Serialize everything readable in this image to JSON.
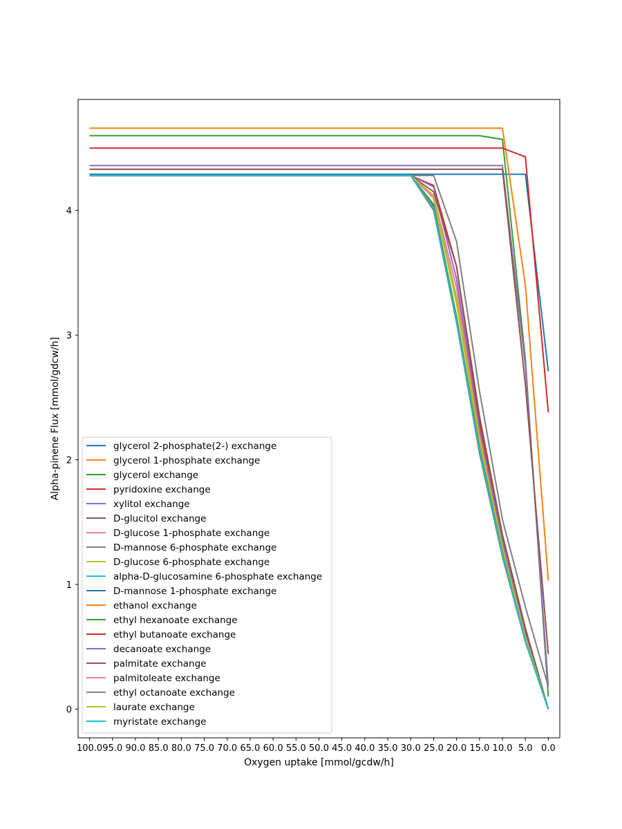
{
  "chart_data": {
    "type": "line",
    "title": "",
    "xlabel": "Oxygen uptake [mmol/gcdw/h]",
    "ylabel": "Alpha-pinene Flux [mmol/gdcw/h]",
    "x_inverted": true,
    "xlim": [
      102.5,
      -2.5
    ],
    "ylim": [
      -0.23,
      4.89
    ],
    "x": [
      100,
      95,
      90,
      85,
      80,
      75,
      70,
      65,
      60,
      55,
      50,
      45,
      40,
      35,
      30,
      25,
      20,
      15,
      10,
      5,
      0
    ],
    "x_tick_labels": [
      "100.0",
      "95.0",
      "90.0",
      "85.0",
      "80.0",
      "75.0",
      "70.0",
      "65.0",
      "60.0",
      "55.0",
      "50.0",
      "45.0",
      "40.0",
      "35.0",
      "30.0",
      "25.0",
      "20.0",
      "15.0",
      "10.0",
      "5.0",
      "0.0"
    ],
    "y_ticks": [
      0,
      1,
      2,
      3,
      4
    ],
    "y_tick_labels": [
      "0",
      "1",
      "2",
      "3",
      "4"
    ],
    "grid": false,
    "legend_position": "lower-left",
    "series": [
      {
        "name": "glycerol 2-phosphate(2-) exchange",
        "color": "#1f77b4",
        "values": [
          4.29,
          4.29,
          4.29,
          4.29,
          4.29,
          4.29,
          4.29,
          4.29,
          4.29,
          4.29,
          4.29,
          4.29,
          4.29,
          4.29,
          4.29,
          4.29,
          4.29,
          4.29,
          4.29,
          4.29,
          2.71
        ]
      },
      {
        "name": "glycerol 1-phosphate exchange",
        "color": "#ff7f0e",
        "values": [
          4.66,
          4.66,
          4.66,
          4.66,
          4.66,
          4.66,
          4.66,
          4.66,
          4.66,
          4.66,
          4.66,
          4.66,
          4.66,
          4.66,
          4.66,
          4.66,
          4.66,
          4.66,
          4.66,
          3.4,
          1.03
        ]
      },
      {
        "name": "glycerol exchange",
        "color": "#2ca02c",
        "values": [
          4.6,
          4.6,
          4.6,
          4.6,
          4.6,
          4.6,
          4.6,
          4.6,
          4.6,
          4.6,
          4.6,
          4.6,
          4.6,
          4.6,
          4.6,
          4.6,
          4.6,
          4.6,
          4.57,
          2.8,
          0.1
        ]
      },
      {
        "name": "pyridoxine exchange",
        "color": "#d62728",
        "values": [
          4.5,
          4.5,
          4.5,
          4.5,
          4.5,
          4.5,
          4.5,
          4.5,
          4.5,
          4.5,
          4.5,
          4.5,
          4.5,
          4.5,
          4.5,
          4.5,
          4.5,
          4.5,
          4.5,
          4.43,
          2.38
        ]
      },
      {
        "name": "xylitol exchange",
        "color": "#9467bd",
        "values": [
          4.36,
          4.36,
          4.36,
          4.36,
          4.36,
          4.36,
          4.36,
          4.36,
          4.36,
          4.36,
          4.36,
          4.36,
          4.36,
          4.36,
          4.36,
          4.36,
          4.36,
          4.36,
          4.36,
          2.75,
          0.18
        ]
      },
      {
        "name": "D-glucitol exchange",
        "color": "#8c564b",
        "values": [
          4.33,
          4.33,
          4.33,
          4.33,
          4.33,
          4.33,
          4.33,
          4.33,
          4.33,
          4.33,
          4.33,
          4.33,
          4.33,
          4.33,
          4.33,
          4.33,
          4.33,
          4.33,
          4.33,
          2.6,
          0.44
        ]
      },
      {
        "name": "D-glucose 1-phosphate exchange",
        "color": "#e377c2",
        "values": [
          4.28,
          4.28,
          4.28,
          4.28,
          4.28,
          4.28,
          4.28,
          4.28,
          4.28,
          4.28,
          4.28,
          4.28,
          4.28,
          4.28,
          4.28,
          4.12,
          3.38,
          2.2,
          1.32,
          0.6,
          0.0
        ]
      },
      {
        "name": "D-mannose 6-phosphate exchange",
        "color": "#7f7f7f",
        "values": [
          4.28,
          4.28,
          4.28,
          4.28,
          4.28,
          4.28,
          4.28,
          4.28,
          4.28,
          4.28,
          4.28,
          4.28,
          4.28,
          4.28,
          4.28,
          4.28,
          3.75,
          2.55,
          1.52,
          0.82,
          0.18
        ]
      },
      {
        "name": "D-glucose 6-phosphate exchange",
        "color": "#bcbd22",
        "values": [
          4.28,
          4.28,
          4.28,
          4.28,
          4.28,
          4.28,
          4.28,
          4.28,
          4.28,
          4.28,
          4.28,
          4.28,
          4.28,
          4.28,
          4.28,
          4.1,
          3.25,
          2.15,
          1.3,
          0.58,
          0.0
        ]
      },
      {
        "name": "alpha-D-glucosamine 6-phosphate exchange",
        "color": "#17becf",
        "values": [
          4.28,
          4.28,
          4.28,
          4.28,
          4.28,
          4.28,
          4.28,
          4.28,
          4.28,
          4.28,
          4.28,
          4.28,
          4.28,
          4.28,
          4.28,
          4.05,
          3.15,
          2.1,
          1.25,
          0.55,
          0.0
        ]
      },
      {
        "name": "D-mannose 1-phosphate exchange",
        "color": "#1f77b4",
        "values": [
          4.28,
          4.28,
          4.28,
          4.28,
          4.28,
          4.28,
          4.28,
          4.28,
          4.28,
          4.28,
          4.28,
          4.28,
          4.28,
          4.28,
          4.28,
          4.03,
          3.12,
          2.08,
          1.24,
          0.55,
          0.0
        ]
      },
      {
        "name": "ethanol exchange",
        "color": "#ff7f0e",
        "values": [
          4.28,
          4.28,
          4.28,
          4.28,
          4.28,
          4.28,
          4.28,
          4.28,
          4.28,
          4.28,
          4.28,
          4.28,
          4.28,
          4.28,
          4.28,
          4.05,
          3.15,
          2.1,
          1.25,
          0.56,
          0.0
        ]
      },
      {
        "name": "ethyl hexanoate exchange",
        "color": "#2ca02c",
        "values": [
          4.28,
          4.28,
          4.28,
          4.28,
          4.28,
          4.28,
          4.28,
          4.28,
          4.28,
          4.28,
          4.28,
          4.28,
          4.28,
          4.28,
          4.28,
          4.04,
          3.14,
          2.09,
          1.25,
          0.55,
          0.0
        ]
      },
      {
        "name": "ethyl butanoate exchange",
        "color": "#d62728",
        "values": [
          4.28,
          4.28,
          4.28,
          4.28,
          4.28,
          4.28,
          4.28,
          4.28,
          4.28,
          4.28,
          4.28,
          4.28,
          4.28,
          4.28,
          4.28,
          4.2,
          3.55,
          2.3,
          1.38,
          0.62,
          0.0
        ]
      },
      {
        "name": "decanoate exchange",
        "color": "#9467bd",
        "values": [
          4.28,
          4.28,
          4.28,
          4.28,
          4.28,
          4.28,
          4.28,
          4.28,
          4.28,
          4.28,
          4.28,
          4.28,
          4.28,
          4.28,
          4.28,
          4.19,
          3.45,
          2.25,
          1.35,
          0.6,
          0.0
        ]
      },
      {
        "name": "palmitate exchange",
        "color": "#8c564b",
        "values": [
          4.28,
          4.28,
          4.28,
          4.28,
          4.28,
          4.28,
          4.28,
          4.28,
          4.28,
          4.28,
          4.28,
          4.28,
          4.28,
          4.28,
          4.28,
          4.15,
          3.55,
          2.35,
          1.4,
          0.65,
          0.0
        ]
      },
      {
        "name": "palmitoleate exchange",
        "color": "#e377c2",
        "values": [
          4.28,
          4.28,
          4.28,
          4.28,
          4.28,
          4.28,
          4.28,
          4.28,
          4.28,
          4.28,
          4.28,
          4.28,
          4.28,
          4.28,
          4.28,
          4.1,
          3.3,
          2.18,
          1.3,
          0.58,
          0.0
        ]
      },
      {
        "name": "ethyl octanoate exchange",
        "color": "#7f7f7f",
        "values": [
          4.28,
          4.28,
          4.28,
          4.28,
          4.28,
          4.28,
          4.28,
          4.28,
          4.28,
          4.28,
          4.28,
          4.28,
          4.28,
          4.28,
          4.28,
          4.0,
          3.1,
          2.05,
          1.22,
          0.54,
          0.0
        ]
      },
      {
        "name": "laurate exchange",
        "color": "#bcbd22",
        "values": [
          4.28,
          4.28,
          4.28,
          4.28,
          4.28,
          4.28,
          4.28,
          4.28,
          4.28,
          4.28,
          4.28,
          4.28,
          4.28,
          4.28,
          4.28,
          4.12,
          3.3,
          2.18,
          1.3,
          0.58,
          0.0
        ]
      },
      {
        "name": "myristate exchange",
        "color": "#17becf",
        "values": [
          4.28,
          4.28,
          4.28,
          4.28,
          4.28,
          4.28,
          4.28,
          4.28,
          4.28,
          4.28,
          4.28,
          4.28,
          4.28,
          4.28,
          4.28,
          4.02,
          3.12,
          2.08,
          1.24,
          0.55,
          0.0
        ]
      }
    ]
  }
}
